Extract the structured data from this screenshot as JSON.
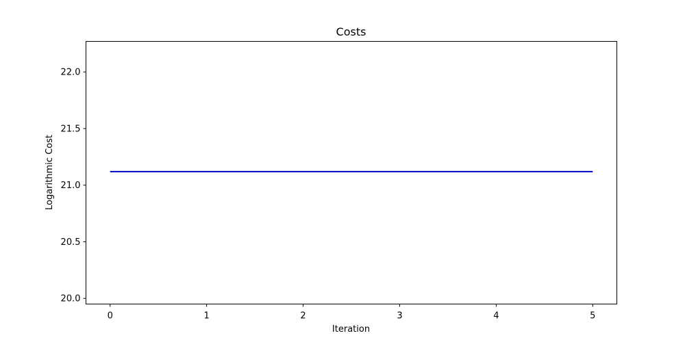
{
  "chart_data": {
    "type": "line",
    "title": "Costs",
    "xlabel": "Iteration",
    "ylabel": "Logarithmic Cost",
    "xlim": [
      -0.25,
      5.25
    ],
    "ylim": [
      19.95,
      22.27
    ],
    "xticks": [
      0,
      1,
      2,
      3,
      4,
      5
    ],
    "xtick_labels": [
      "0",
      "1",
      "2",
      "3",
      "4",
      "5"
    ],
    "yticks": [
      20.0,
      20.5,
      21.0,
      21.5,
      22.0
    ],
    "ytick_labels": [
      "20.0",
      "20.5",
      "21.0",
      "21.5",
      "22.0"
    ],
    "grid": false,
    "series": [
      {
        "color": "#0000cc",
        "x": [
          0,
          1,
          2,
          3,
          4,
          5
        ],
        "y": [
          21.12,
          21.12,
          21.12,
          21.12,
          21.12,
          21.12
        ]
      }
    ]
  }
}
